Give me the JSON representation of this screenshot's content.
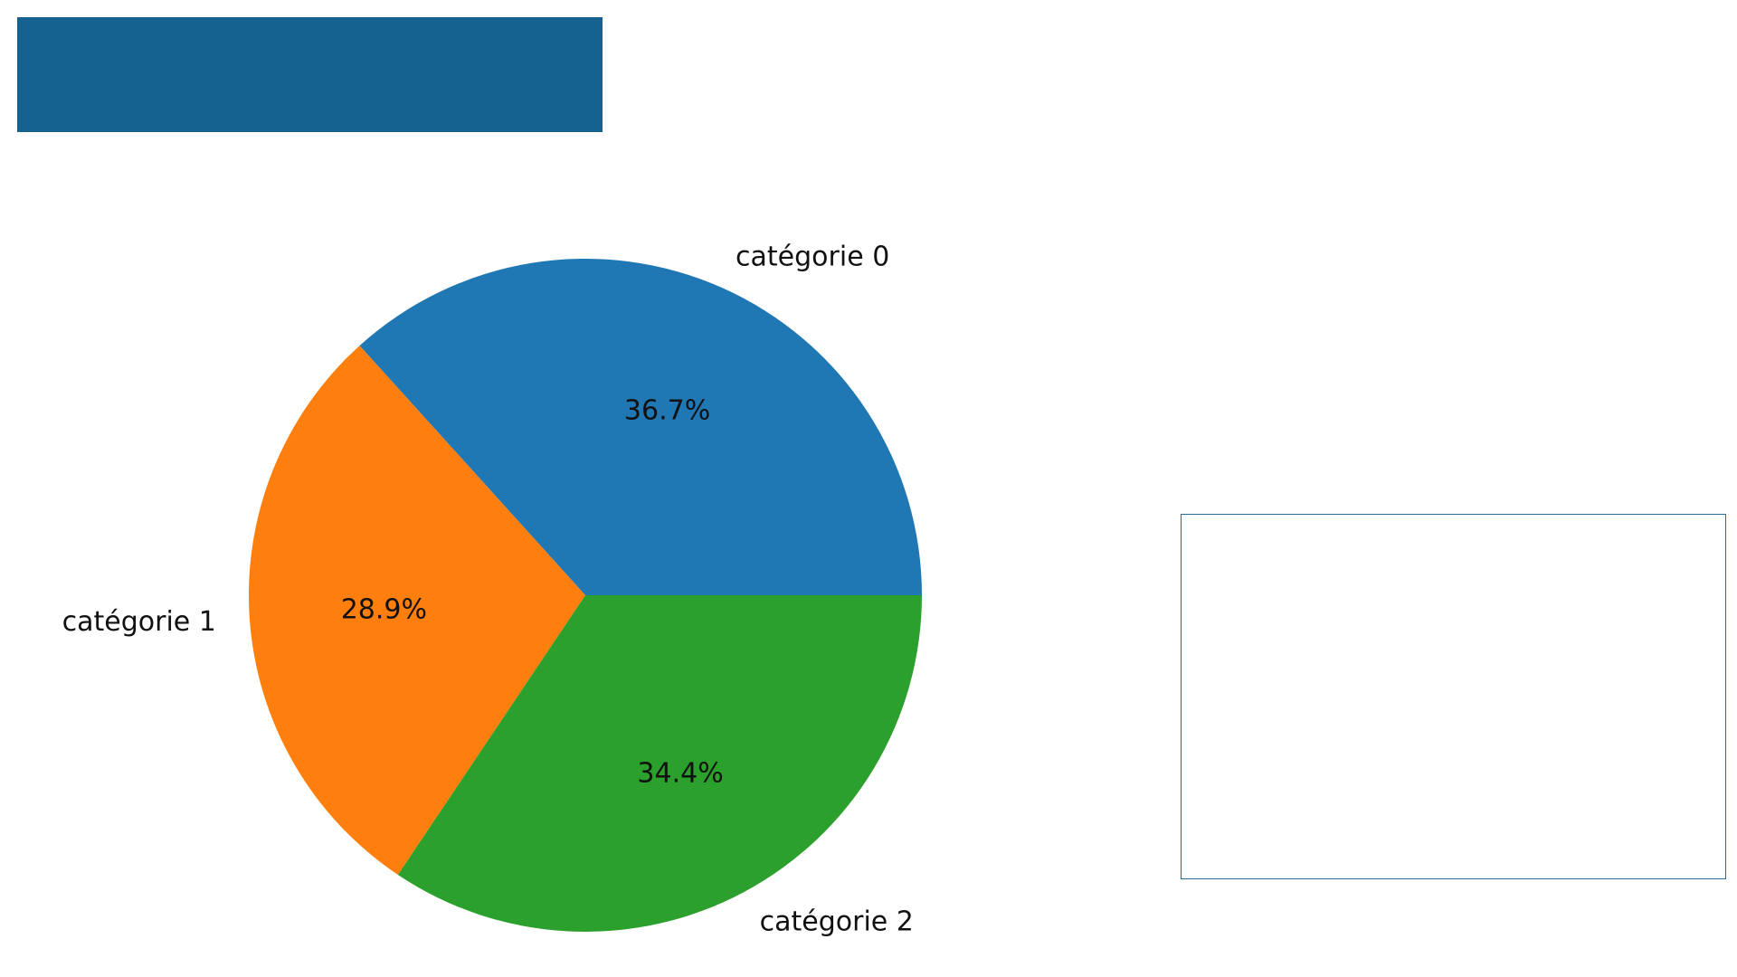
{
  "colors": {
    "banner": "#156291",
    "panel_border": "#2a6a98",
    "background": "#ffffff"
  },
  "chart_data": {
    "type": "pie",
    "categories": [
      "catégorie 0",
      "catégorie 1",
      "catégorie 2"
    ],
    "values": [
      36.7,
      28.9,
      34.4
    ],
    "percent_labels": [
      "36.7%",
      "28.9%",
      "34.4%"
    ],
    "colors": [
      "#1f77b4",
      "#ff7f0e",
      "#2ca02c"
    ],
    "start_angle_deg": 0,
    "direction": "counterclockwise",
    "legend": "none"
  }
}
